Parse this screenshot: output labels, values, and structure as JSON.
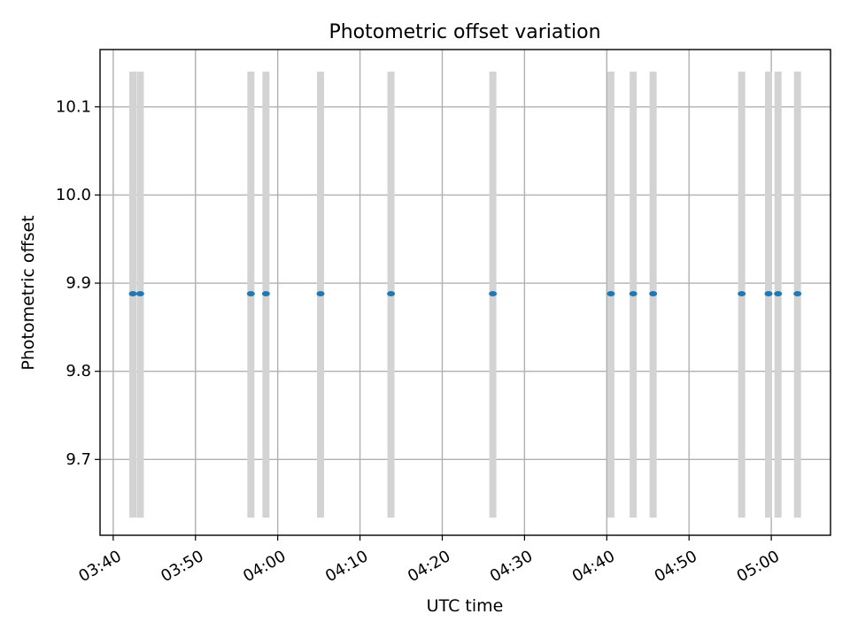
{
  "chart_data": {
    "type": "scatter",
    "title": "Photometric offset variation",
    "xlabel": "UTC time",
    "ylabel": "Photometric offset",
    "xlim": [
      "03:38:24",
      "05:07:12"
    ],
    "ylim": [
      9.614,
      10.165
    ],
    "x_ticks": [
      "03:40",
      "03:50",
      "04:00",
      "04:10",
      "04:20",
      "04:30",
      "04:40",
      "04:50",
      "05:00"
    ],
    "y_ticks": [
      "9.7",
      "9.8",
      "9.9",
      "10.0",
      "10.1"
    ],
    "grid": true,
    "colors": {
      "point": "#1f77b4",
      "band": "#d3d3d3"
    },
    "band_range": [
      9.634,
      10.14
    ],
    "series": [
      {
        "x": [
          "03:42:23",
          "03:43:17",
          "03:56:44",
          "03:58:34",
          "04:05:12",
          "04:13:46",
          "04:26:09",
          "04:40:30",
          "04:43:13",
          "04:45:38",
          "04:56:24",
          "04:59:40",
          "05:00:49",
          "05:03:11"
        ],
        "y": [
          9.888,
          9.888,
          9.888,
          9.888,
          9.888,
          9.888,
          9.888,
          9.888,
          9.888,
          9.888,
          9.888,
          9.888,
          9.888,
          9.888
        ]
      }
    ]
  }
}
